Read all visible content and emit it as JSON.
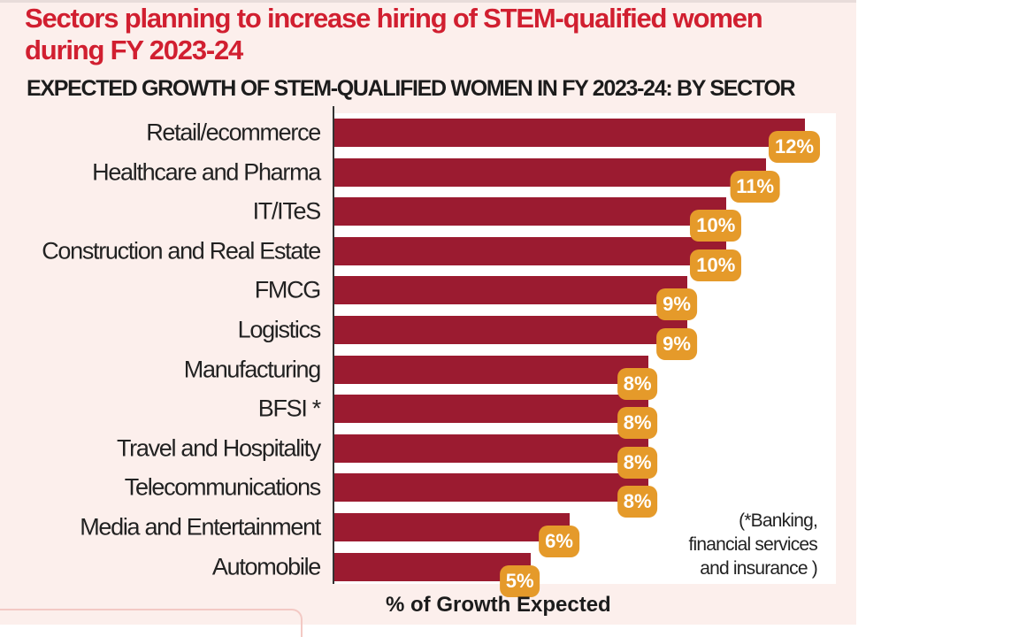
{
  "title": "Sectors planning to increase hiring of STEM-qualified women during FY 2023-24",
  "title_lines": [
    "Sectors planning to increase hiring of STEM-qualified women",
    "during FY 2023-24"
  ],
  "subtitle": "EXPECTED GROWTH OF STEM-QUALIFIED WOMEN IN FY 2023-24: BY SECTOR",
  "footnote": [
    "(*Banking,",
    "financial services",
    "and insurance )"
  ],
  "colors": {
    "bar": "#9b1b30",
    "label": "#e59a2a",
    "title": "#d11f30",
    "background": "#fcefec"
  },
  "chart_data": {
    "type": "bar",
    "orientation": "horizontal",
    "title": "EXPECTED GROWTH OF STEM-QUALIFIED WOMEN IN FY 2023-24: BY SECTOR",
    "xlabel": "% of Growth Expected",
    "ylabel": "",
    "categories": [
      "Retail/ecommerce",
      "Healthcare and Pharma",
      "IT/ITeS",
      "Construction and Real Estate",
      "FMCG",
      "Logistics",
      "Manufacturing",
      "BFSI *",
      "Travel and Hospitality",
      "Telecommunications",
      "Media and Entertainment",
      "Automobile"
    ],
    "values": [
      12,
      11,
      10,
      10,
      9,
      9,
      8,
      8,
      8,
      8,
      6,
      5
    ],
    "data_labels": [
      "12%",
      "11%",
      "10%",
      "10%",
      "9%",
      "9%",
      "8%",
      "8%",
      "8%",
      "8%",
      "6%",
      "5%"
    ],
    "xlim": [
      0,
      12
    ],
    "grid": false
  }
}
